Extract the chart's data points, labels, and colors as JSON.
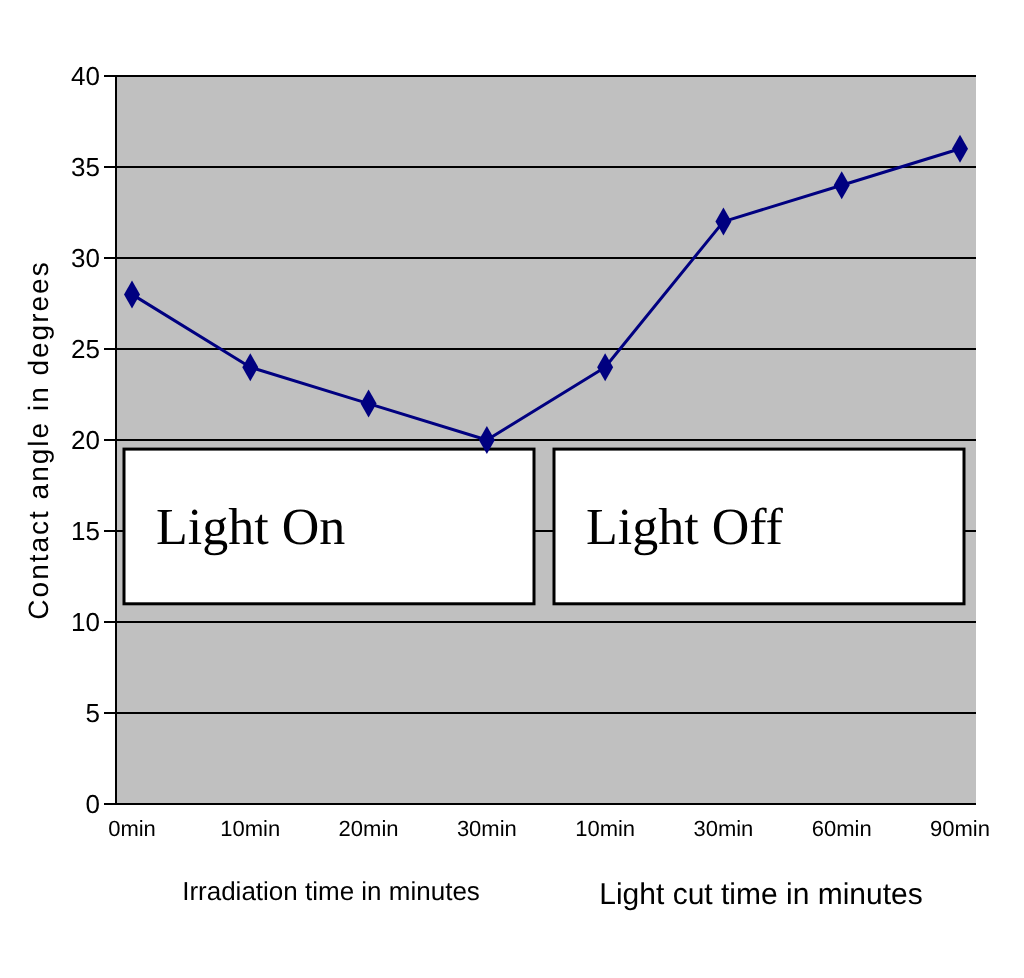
{
  "chart_data": {
    "type": "line",
    "ylabel": "Contact angle in degrees",
    "xlabel": "Irradiation time in minutes",
    "categories": [
      "0min",
      "10min",
      "20min",
      "30min",
      "10min",
      "30min",
      "60min",
      "90min"
    ],
    "series": [
      {
        "color": "#000080",
        "values": [
          28,
          24,
          22,
          20,
          24,
          32,
          34,
          36
        ]
      }
    ],
    "ylim": [
      0,
      40
    ],
    "yticks": [
      0,
      5,
      10,
      15,
      20,
      25,
      30,
      35,
      40
    ],
    "grid": "y",
    "marker": "diamond",
    "annotations": [
      "Light On",
      "Light Off",
      "Light cut time in minutes"
    ]
  }
}
